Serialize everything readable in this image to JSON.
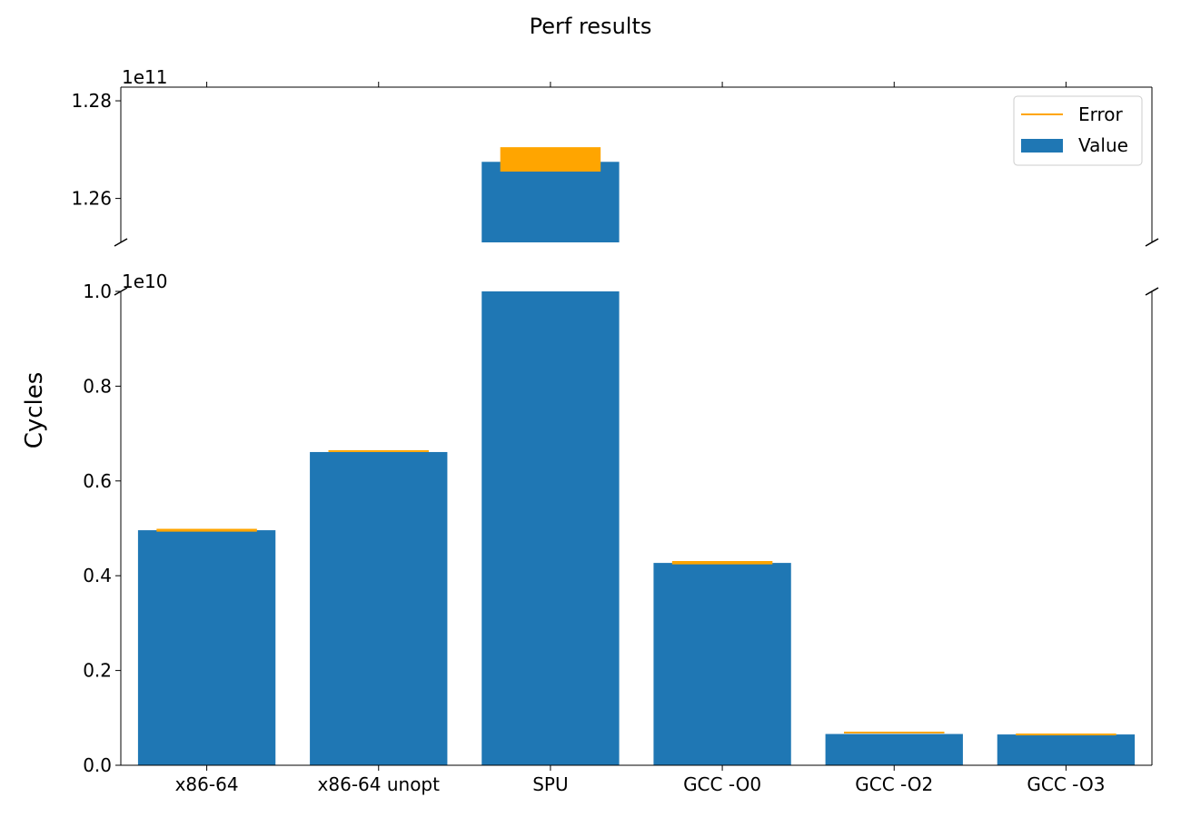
{
  "colors": {
    "bar": "#1f77b4",
    "error": "#ffa500",
    "axis": "#000000",
    "background": "#ffffff"
  },
  "chart_data": {
    "type": "bar",
    "title": "Perf results",
    "xlabel": "",
    "ylabel": "Cycles",
    "broken_axis": true,
    "grid": false,
    "legend_position": "top-right",
    "legend": {
      "error_label": "Error",
      "value_label": "Value"
    },
    "categories": [
      "x86-64",
      "x86-64 unopt",
      "SPU",
      "GCC -O0",
      "GCC -O2",
      "GCC -O3"
    ],
    "values": [
      4960000000,
      6610000000,
      126750000000,
      4270000000,
      660000000,
      650000000
    ],
    "error_low": [
      4930000000,
      6600000000,
      126550000000,
      4240000000,
      660000000,
      650000000
    ],
    "error_high": [
      4990000000,
      6630000000,
      127050000000,
      4310000000,
      690000000,
      650000000
    ],
    "upper_panel": {
      "ylim": [
        125100000000,
        128280000000
      ],
      "ticks": [
        126000000000,
        128000000000
      ],
      "tick_labels": [
        "1.26",
        "1.28"
      ],
      "offset_label": "1e11"
    },
    "lower_panel": {
      "ylim": [
        0,
        10000000000
      ],
      "ticks": [
        0,
        2000000000,
        4000000000,
        6000000000,
        8000000000,
        10000000000
      ],
      "tick_labels": [
        "0.0",
        "0.2",
        "0.4",
        "0.6",
        "0.8",
        "1.0"
      ],
      "offset_label": "1e10"
    }
  }
}
